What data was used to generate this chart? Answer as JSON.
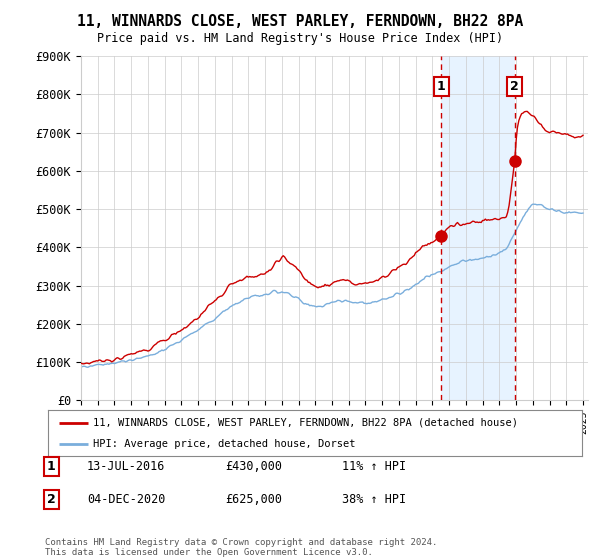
{
  "title": "11, WINNARDS CLOSE, WEST PARLEY, FERNDOWN, BH22 8PA",
  "subtitle": "Price paid vs. HM Land Registry's House Price Index (HPI)",
  "ylim": [
    0,
    900000
  ],
  "sale1_year": 2016.54,
  "sale2_year": 2020.92,
  "sale1_price": 430000,
  "sale2_price": 625000,
  "house_color": "#cc0000",
  "hpi_color": "#7aaedc",
  "vline_color": "#cc0000",
  "shade_color": "#ddeeff",
  "legend_house": "11, WINNARDS CLOSE, WEST PARLEY, FERNDOWN, BH22 8PA (detached house)",
  "legend_hpi": "HPI: Average price, detached house, Dorset",
  "footer": "Contains HM Land Registry data © Crown copyright and database right 2024.\nThis data is licensed under the Open Government Licence v3.0.",
  "background_color": "#ffffff",
  "plot_bg": "#ffffff",
  "grid_color": "#cccccc",
  "hpi_knots_x": [
    1995,
    1996,
    1997,
    1998,
    1999,
    2000,
    2001,
    2002,
    2003,
    2004,
    2005,
    2006,
    2007,
    2007.5,
    2008,
    2008.5,
    2009,
    2009.5,
    2010,
    2010.5,
    2011,
    2011.5,
    2012,
    2012.5,
    2013,
    2013.5,
    2014,
    2014.5,
    2015,
    2015.5,
    2016,
    2016.5,
    2017,
    2017.5,
    2018,
    2018.5,
    2019,
    2019.5,
    2020,
    2020.5,
    2021,
    2021.25,
    2021.5,
    2021.75,
    2022,
    2022.25,
    2022.5,
    2022.75,
    2023,
    2023.25,
    2023.5,
    2024,
    2024.5,
    2025
  ],
  "hpi_knots_y": [
    88000,
    92000,
    97000,
    105000,
    115000,
    133000,
    158000,
    185000,
    215000,
    248000,
    268000,
    278000,
    285000,
    278000,
    265000,
    250000,
    245000,
    248000,
    255000,
    260000,
    258000,
    255000,
    255000,
    258000,
    262000,
    270000,
    278000,
    290000,
    305000,
    318000,
    328000,
    338000,
    348000,
    358000,
    365000,
    368000,
    372000,
    378000,
    385000,
    400000,
    440000,
    465000,
    485000,
    500000,
    510000,
    515000,
    510000,
    505000,
    500000,
    498000,
    495000,
    490000,
    490000,
    490000
  ],
  "house_knots_x": [
    1995,
    1996,
    1997,
    1998,
    1999,
    2000,
    2001,
    2002,
    2003,
    2004,
    2005,
    2006,
    2007,
    2007.5,
    2008,
    2008.5,
    2009,
    2009.5,
    2010,
    2010.5,
    2011,
    2011.5,
    2012,
    2012.5,
    2013,
    2013.5,
    2014,
    2014.5,
    2015,
    2015.5,
    2016,
    2016.54,
    2016.7,
    2017,
    2017.5,
    2018,
    2018.5,
    2019,
    2019.5,
    2020,
    2020.5,
    2020.92,
    2021,
    2021.25,
    2021.5,
    2021.75,
    2022,
    2022.25,
    2022.5,
    2022.75,
    2023,
    2023.5,
    2024,
    2024.5,
    2025
  ],
  "house_knots_y": [
    95000,
    100000,
    108000,
    120000,
    135000,
    158000,
    185000,
    215000,
    260000,
    305000,
    320000,
    330000,
    378000,
    360000,
    340000,
    310000,
    295000,
    300000,
    308000,
    315000,
    310000,
    305000,
    305000,
    312000,
    320000,
    335000,
    348000,
    362000,
    385000,
    405000,
    415000,
    430000,
    440000,
    455000,
    460000,
    462000,
    465000,
    468000,
    472000,
    476000,
    485000,
    625000,
    700000,
    740000,
    755000,
    750000,
    745000,
    730000,
    720000,
    710000,
    705000,
    700000,
    695000,
    690000,
    690000
  ]
}
